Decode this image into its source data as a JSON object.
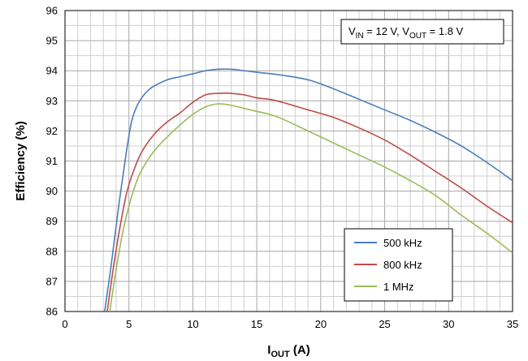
{
  "chart_data": {
    "type": "line",
    "xlabel": "I",
    "xlabel_sub": "OUT",
    "xlabel_unit": " (A)",
    "ylabel": "Efficiency (%)",
    "xlim": [
      0,
      35
    ],
    "ylim": [
      86,
      96
    ],
    "x_ticks": [
      0,
      5,
      10,
      15,
      20,
      25,
      30,
      35
    ],
    "y_ticks": [
      86,
      87,
      88,
      89,
      90,
      91,
      92,
      93,
      94,
      95,
      96
    ],
    "x_minor_step": 1,
    "y_minor_step": 0.5,
    "grid": true,
    "legend_position": "lower-right",
    "annotation": {
      "v": "V",
      "in_sub": "IN",
      "mid": " = 12 V, V",
      "out_sub": "OUT",
      "end": " = 1.8 V"
    },
    "series": [
      {
        "name": "500 kHz",
        "color": "#4a7ebb",
        "x": [
          3.1,
          3.6,
          4.2,
          4.8,
          5.2,
          5.6,
          6,
          6.5,
          7,
          8,
          9,
          10,
          11,
          12,
          13,
          14,
          15,
          17,
          19,
          21,
          23,
          25,
          27,
          29,
          31,
          33,
          35
        ],
        "y": [
          86.0,
          87.5,
          89.5,
          91.3,
          92.3,
          92.8,
          93.1,
          93.35,
          93.5,
          93.7,
          93.8,
          93.9,
          94.0,
          94.05,
          94.05,
          94.0,
          93.95,
          93.85,
          93.7,
          93.4,
          93.05,
          92.7,
          92.35,
          91.95,
          91.5,
          90.95,
          90.35
        ]
      },
      {
        "name": "800 kHz",
        "color": "#be4b48",
        "x": [
          3.3,
          3.8,
          4.3,
          4.8,
          5.3,
          6,
          7,
          8,
          9,
          10,
          11,
          12,
          13,
          14,
          15,
          16,
          17,
          19,
          21,
          23,
          25,
          27,
          29,
          31,
          33,
          35
        ],
        "y": [
          86.0,
          87.5,
          88.8,
          89.9,
          90.6,
          91.3,
          91.9,
          92.3,
          92.6,
          92.95,
          93.2,
          93.25,
          93.25,
          93.2,
          93.1,
          93.05,
          92.95,
          92.7,
          92.45,
          92.1,
          91.7,
          91.2,
          90.65,
          90.1,
          89.5,
          88.95
        ]
      },
      {
        "name": "1 MHz",
        "color": "#9bbb59",
        "x": [
          3.5,
          4.0,
          4.5,
          5.0,
          5.5,
          6,
          7,
          8,
          9,
          10,
          11,
          12,
          13,
          14,
          15,
          16,
          17,
          19,
          21,
          23,
          25,
          27,
          29,
          31,
          33,
          35
        ],
        "y": [
          86.0,
          87.4,
          88.6,
          89.5,
          90.2,
          90.7,
          91.35,
          91.8,
          92.2,
          92.55,
          92.8,
          92.9,
          92.85,
          92.75,
          92.65,
          92.55,
          92.4,
          92.0,
          91.6,
          91.2,
          90.8,
          90.35,
          89.85,
          89.2,
          88.6,
          87.95
        ]
      }
    ]
  }
}
